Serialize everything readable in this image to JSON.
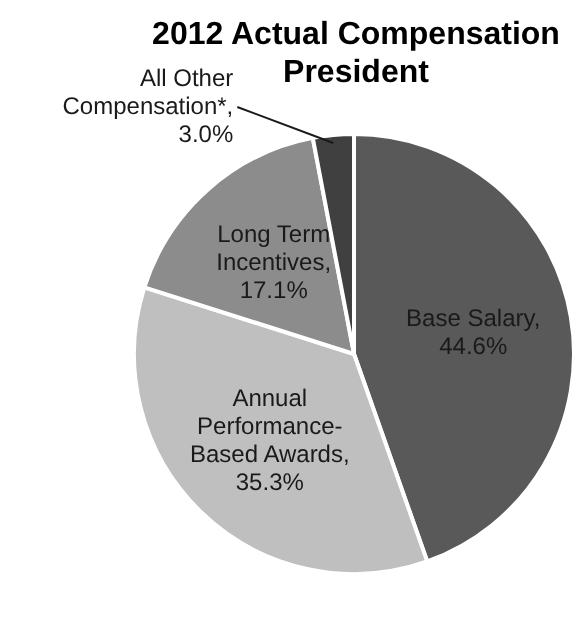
{
  "chart_data": {
    "type": "pie",
    "title": "2012 Actual Compensation President",
    "categories": [
      "Base Salary",
      "Annual Performance-Based Awards",
      "Long Term Incentives",
      "All Other Compensation*"
    ],
    "values": [
      44.6,
      35.3,
      17.1,
      3.0
    ],
    "value_labels": [
      ", 44.6%",
      ", 35.3%",
      ", 17.1%",
      ", 3.0%"
    ],
    "colors": [
      "#595959",
      "#bfbfbf",
      "#8c8c8c",
      "#404040"
    ],
    "legend": false
  }
}
